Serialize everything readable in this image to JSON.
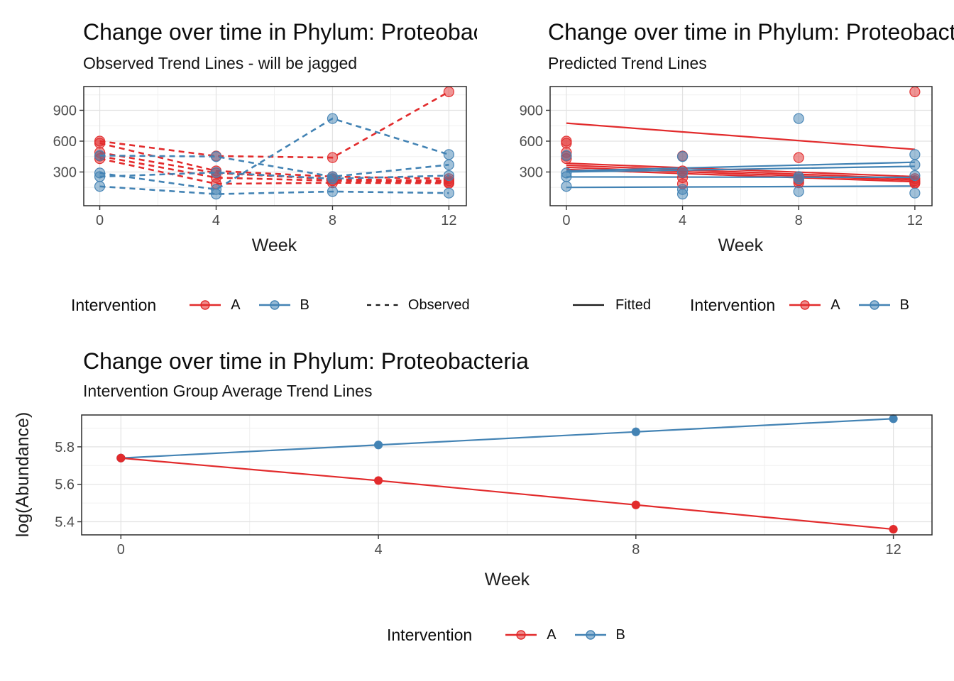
{
  "colors": {
    "red": "#e22b2c",
    "blue": "#4383b4",
    "black_key": "#1a1a1a",
    "axis_text": "#4d4d4d",
    "axis_title": "#1f1f1f",
    "grid_major": "#e2e2e2",
    "grid_minor": "#f0f0f0",
    "panel_border": "#2b2b2b",
    "panel_background": "#ffffff",
    "group_colors": {
      "A": "#e22b2c",
      "B": "#4383b4"
    }
  },
  "legends": {
    "observed": {
      "title": "Intervention",
      "item_a": "A",
      "item_b": "B",
      "linetype_label": "Observed"
    },
    "predicted": {
      "linetype_label": "Fitted",
      "title": "Intervention",
      "item_a": "A",
      "item_b": "B"
    },
    "average": {
      "title": "Intervention",
      "item_a": "A",
      "item_b": "B"
    }
  },
  "chart_data": [
    {
      "type": "line",
      "title": "Change over time in Phylum: Proteobacteria",
      "subtitle": "Observed Trend Lines - will be jagged",
      "xlabel": "Week",
      "ylabel": "",
      "x": [
        0,
        4,
        8,
        12
      ],
      "xticks": [
        0,
        4,
        8,
        12
      ],
      "xtick_labels": [
        "0",
        "4",
        "8",
        "12"
      ],
      "yticks": [
        300,
        600,
        900
      ],
      "ytick_labels": [
        "300",
        "600",
        "900"
      ],
      "xminor": [
        2,
        6,
        10
      ],
      "yminor": [
        150,
        450,
        750,
        1050
      ],
      "xlim": [
        -0.55,
        12.6
      ],
      "ylim": [
        -28,
        1131
      ],
      "legend_title": "Intervention",
      "legend_position": "bottom",
      "grid": true,
      "layers": [
        {
          "name": "observed-subject-lines",
          "line": "dashed",
          "line_width": 2.6,
          "point_r": 7,
          "point_opacity": 0.5,
          "series": [
            {
              "name": "A-subject-1",
              "group": "A",
              "values": [
                600,
                455,
                440,
                1080
              ]
            },
            {
              "name": "A-subject-2",
              "group": "A",
              "values": [
                580,
                310,
                255,
                235
              ]
            },
            {
              "name": "A-subject-3",
              "group": "A",
              "values": [
                490,
                290,
                230,
                215
              ]
            },
            {
              "name": "A-subject-4",
              "group": "A",
              "values": [
                455,
                245,
                215,
                200
              ]
            },
            {
              "name": "A-subject-5",
              "group": "A",
              "values": [
                430,
                185,
                195,
                190
              ]
            },
            {
              "name": "B-subject-1",
              "group": "B",
              "values": [
                460,
                450,
                255,
                370
              ]
            },
            {
              "name": "B-subject-2",
              "group": "B",
              "values": [
                290,
                130,
                820,
                470
              ]
            },
            {
              "name": "B-subject-3",
              "group": "B",
              "values": [
                255,
                295,
                235,
                265
              ]
            },
            {
              "name": "B-subject-4",
              "group": "B",
              "values": [
                160,
                85,
                110,
                95
              ]
            }
          ]
        }
      ]
    },
    {
      "type": "scatter",
      "title": "Change over time in Phylum: Proteobacteria",
      "subtitle": "Predicted Trend Lines",
      "xlabel": "Week",
      "ylabel": "",
      "x": [
        0,
        4,
        8,
        12
      ],
      "xticks": [
        0,
        4,
        8,
        12
      ],
      "xtick_labels": [
        "0",
        "4",
        "8",
        "12"
      ],
      "yticks": [
        300,
        600,
        900
      ],
      "ytick_labels": [
        "300",
        "600",
        "900"
      ],
      "xminor": [
        2,
        6,
        10
      ],
      "yminor": [
        150,
        450,
        750,
        1050
      ],
      "xlim": [
        -0.56,
        12.59
      ],
      "ylim": [
        -28,
        1131
      ],
      "legend_title": "Intervention",
      "legend_position": "bottom",
      "grid": true,
      "layers": [
        {
          "name": "fitted-subject-lines",
          "line": "solid",
          "line_width": 2.2,
          "point_r": 0,
          "point_opacity": 0,
          "series": [
            {
              "name": "A-fit-1",
              "group": "A",
              "x": [
                0,
                12
              ],
              "values": [
                775,
                520
              ]
            },
            {
              "name": "A-fit-2",
              "group": "A",
              "x": [
                0,
                12
              ],
              "values": [
                385,
                255
              ]
            },
            {
              "name": "A-fit-3",
              "group": "A",
              "x": [
                0,
                12
              ],
              "values": [
                365,
                235
              ]
            },
            {
              "name": "A-fit-4",
              "group": "A",
              "x": [
                0,
                12
              ],
              "values": [
                345,
                220
              ]
            },
            {
              "name": "A-fit-5",
              "group": "A",
              "x": [
                0,
                12
              ],
              "values": [
                325,
                205
              ]
            },
            {
              "name": "B-fit-1",
              "group": "B",
              "x": [
                0,
                12
              ],
              "values": [
                310,
                395
              ]
            },
            {
              "name": "B-fit-2",
              "group": "B",
              "x": [
                0,
                12
              ],
              "values": [
                300,
                355
              ]
            },
            {
              "name": "B-fit-3",
              "group": "B",
              "x": [
                0,
                12
              ],
              "values": [
                252,
                248
              ]
            },
            {
              "name": "B-fit-4",
              "group": "B",
              "x": [
                0,
                12
              ],
              "values": [
                150,
                163
              ]
            }
          ]
        },
        {
          "name": "observed-points",
          "line": "none",
          "line_width": 0,
          "point_r": 7,
          "point_opacity": 0.5,
          "series": [
            {
              "name": "A-subject-1",
              "group": "A",
              "values": [
                600,
                455,
                440,
                1080
              ]
            },
            {
              "name": "A-subject-2",
              "group": "A",
              "values": [
                580,
                310,
                255,
                235
              ]
            },
            {
              "name": "A-subject-3",
              "group": "A",
              "values": [
                490,
                290,
                230,
                215
              ]
            },
            {
              "name": "A-subject-4",
              "group": "A",
              "values": [
                455,
                245,
                215,
                200
              ]
            },
            {
              "name": "A-subject-5",
              "group": "A",
              "values": [
                430,
                185,
                195,
                190
              ]
            },
            {
              "name": "B-subject-1",
              "group": "B",
              "values": [
                460,
                450,
                255,
                370
              ]
            },
            {
              "name": "B-subject-2",
              "group": "B",
              "values": [
                290,
                130,
                820,
                470
              ]
            },
            {
              "name": "B-subject-3",
              "group": "B",
              "values": [
                255,
                295,
                235,
                265
              ]
            },
            {
              "name": "B-subject-4",
              "group": "B",
              "values": [
                160,
                85,
                110,
                95
              ]
            }
          ]
        }
      ]
    },
    {
      "type": "line",
      "title": "Change over time in Phylum: Proteobacteria",
      "subtitle": "Intervention Group Average Trend Lines",
      "xlabel": "Week",
      "ylabel": "log(Abundance)",
      "x": [
        0,
        4,
        8,
        12
      ],
      "xticks": [
        0,
        4,
        8,
        12
      ],
      "xtick_labels": [
        "0",
        "4",
        "8",
        "12"
      ],
      "yticks": [
        5.4,
        5.6,
        5.8
      ],
      "ytick_labels": [
        "5.4",
        "5.6",
        "5.8"
      ],
      "xminor": [
        2,
        6,
        10
      ],
      "yminor": [
        5.5,
        5.7,
        5.9
      ],
      "xlim": [
        -0.61,
        12.6
      ],
      "ylim": [
        5.33,
        5.97
      ],
      "legend_title": "Intervention",
      "legend_position": "bottom",
      "grid": true,
      "layers": [
        {
          "name": "group-average-lines",
          "line": "solid",
          "line_width": 2.2,
          "point_r": 5.5,
          "point_opacity": 1,
          "series": [
            {
              "name": "B-average",
              "group": "B",
              "values": [
                5.74,
                5.81,
                5.88,
                5.95
              ]
            },
            {
              "name": "A-average",
              "group": "A",
              "values": [
                5.74,
                5.62,
                5.49,
                5.36
              ]
            }
          ]
        }
      ]
    }
  ]
}
